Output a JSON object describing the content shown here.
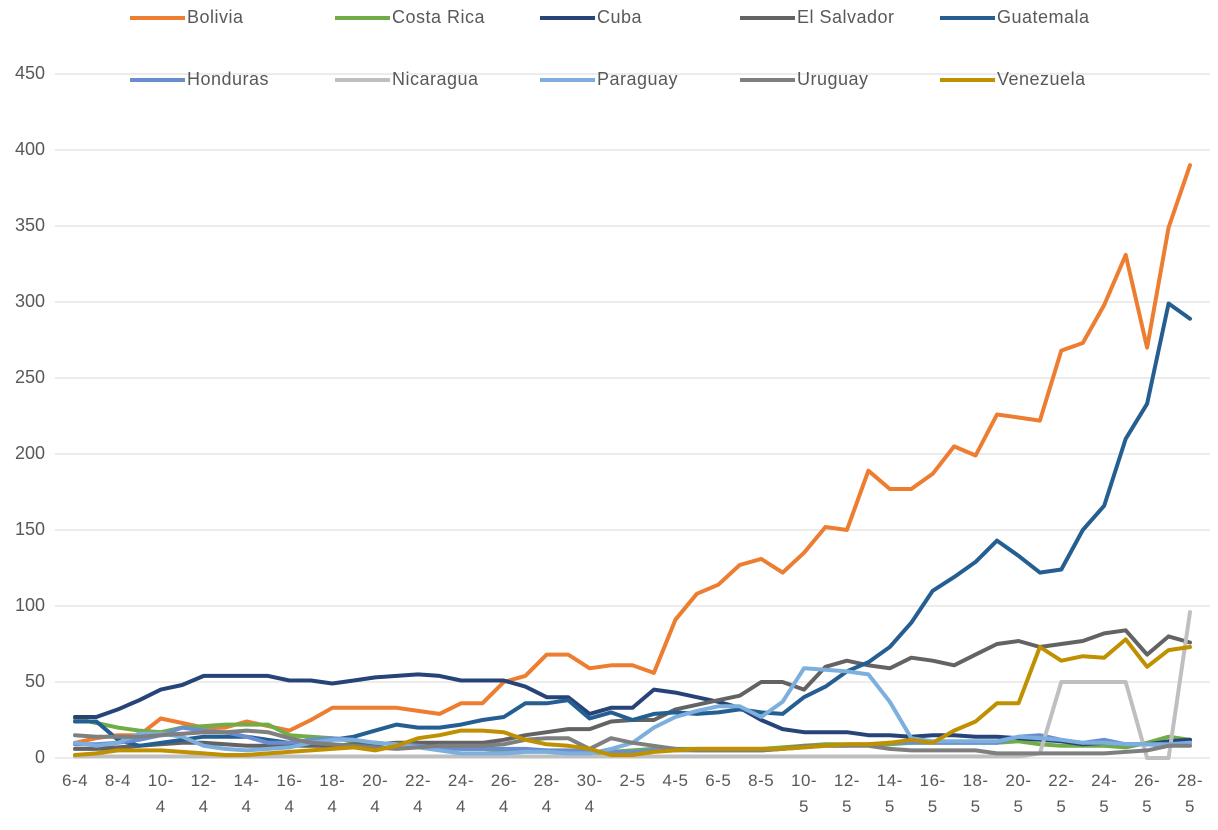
{
  "chart_data": {
    "type": "line",
    "categories": [
      "6-4",
      null,
      "8-4",
      null,
      "10-4",
      null,
      "12-4",
      null,
      "14-4",
      null,
      "16-4",
      null,
      "18-4",
      null,
      "20-4",
      null,
      "22-4",
      null,
      "24-4",
      null,
      "26-4",
      null,
      "28-4",
      null,
      "30-4",
      null,
      "2-5",
      null,
      "4-5",
      null,
      "6-5",
      null,
      "8-5",
      null,
      "10-5",
      null,
      "12-5",
      null,
      "14-5",
      null,
      "16-5",
      null,
      "18-5",
      null,
      "20-5",
      null,
      "22-5",
      null,
      "24-5",
      null,
      "26-5",
      null,
      "28-5"
    ],
    "ylim": [
      0,
      450
    ],
    "yticks": [
      0,
      50,
      100,
      150,
      200,
      250,
      300,
      350,
      400,
      450
    ],
    "grid": true,
    "legend": "top",
    "series": [
      {
        "name": "Bolivia",
        "color": "#ED7D31",
        "values": [
          10,
          13,
          15,
          15,
          26,
          23,
          20,
          20,
          24,
          21,
          18,
          25,
          33,
          33,
          33,
          33,
          31,
          29,
          36,
          36,
          50,
          54,
          68,
          68,
          59,
          61,
          61,
          56,
          91,
          108,
          114,
          127,
          131,
          122,
          135,
          152,
          150,
          189,
          177,
          177,
          187,
          205,
          199,
          226,
          224,
          222,
          268,
          273,
          298,
          331,
          270,
          349,
          390
        ]
      },
      {
        "name": "Costa Rica",
        "color": "#70AD47",
        "values": [
          26,
          23,
          20,
          18,
          17,
          20,
          21,
          22,
          22,
          22,
          15,
          14,
          13,
          11,
          10,
          9,
          8,
          7,
          6,
          6,
          5,
          5,
          5,
          4,
          3,
          4,
          5,
          6,
          6,
          6,
          6,
          6,
          6,
          7,
          8,
          9,
          9,
          9,
          9,
          10,
          10,
          10,
          10,
          10,
          11,
          9,
          8,
          8,
          8,
          7,
          10,
          14,
          12
        ]
      },
      {
        "name": "Cuba",
        "color": "#264478",
        "values": [
          27,
          27,
          32,
          38,
          45,
          48,
          54,
          54,
          54,
          54,
          51,
          51,
          49,
          51,
          53,
          54,
          55,
          54,
          51,
          51,
          51,
          47,
          40,
          40,
          29,
          33,
          33,
          45,
          43,
          40,
          37,
          33,
          25,
          19,
          17,
          17,
          17,
          15,
          15,
          14,
          15,
          15,
          14,
          14,
          13,
          12,
          11,
          9,
          10,
          9,
          9,
          11,
          12
        ]
      },
      {
        "name": "El Salvador",
        "color": "#636363",
        "values": [
          6,
          6,
          7,
          8,
          9,
          10,
          10,
          9,
          8,
          8,
          8,
          8,
          8,
          9,
          9,
          10,
          10,
          10,
          10,
          10,
          12,
          15,
          17,
          19,
          19,
          24,
          25,
          25,
          32,
          35,
          38,
          41,
          50,
          50,
          45,
          60,
          64,
          61,
          59,
          66,
          64,
          61,
          68,
          75,
          77,
          73,
          75,
          77,
          82,
          84,
          68,
          80,
          76
        ]
      },
      {
        "name": "Guatemala",
        "color": "#255E91",
        "values": [
          24,
          24,
          12,
          8,
          10,
          12,
          14,
          14,
          14,
          12,
          10,
          10,
          12,
          14,
          18,
          22,
          20,
          20,
          22,
          25,
          27,
          36,
          36,
          38,
          26,
          30,
          25,
          29,
          30,
          29,
          30,
          32,
          30,
          29,
          40,
          47,
          57,
          63,
          73,
          89,
          110,
          119,
          129,
          143,
          133,
          122,
          124,
          150,
          166,
          210,
          233,
          299,
          289
        ]
      },
      {
        "name": "Honduras",
        "color": "#698ED0",
        "values": [
          9,
          9,
          10,
          12,
          15,
          20,
          18,
          17,
          14,
          10,
          10,
          12,
          13,
          12,
          10,
          9,
          8,
          7,
          6,
          6,
          6,
          6,
          5,
          5,
          4,
          4,
          4,
          5,
          5,
          5,
          5,
          5,
          5,
          6,
          7,
          8,
          8,
          9,
          10,
          10,
          10,
          10,
          10,
          10,
          14,
          15,
          12,
          10,
          12,
          9,
          9,
          8,
          10
        ]
      },
      {
        "name": "Nicaragua",
        "color": "#BFBFBF",
        "values": [
          1,
          1,
          1,
          1,
          1,
          1,
          1,
          1,
          1,
          1,
          1,
          1,
          1,
          1,
          1,
          1,
          1,
          1,
          1,
          1,
          1,
          1,
          1,
          1,
          1,
          1,
          1,
          1,
          1,
          1,
          1,
          1,
          1,
          1,
          1,
          1,
          1,
          1,
          1,
          1,
          1,
          1,
          1,
          1,
          1,
          3,
          50,
          50,
          50,
          50,
          0,
          0,
          96
        ]
      },
      {
        "name": "Paraguay",
        "color": "#7CAFDD",
        "values": [
          10,
          8,
          10,
          16,
          16,
          14,
          8,
          6,
          5,
          6,
          7,
          10,
          12,
          12,
          10,
          9,
          7,
          5,
          3,
          3,
          3,
          4,
          4,
          3,
          3,
          6,
          10,
          20,
          27,
          31,
          34,
          34,
          27,
          37,
          59,
          58,
          57,
          55,
          37,
          13,
          11,
          11,
          11,
          11,
          14,
          13,
          12,
          10,
          10,
          9,
          9,
          9,
          10
        ]
      },
      {
        "name": "Uruguay",
        "color": "#7F7F7F",
        "values": [
          15,
          14,
          14,
          14,
          15,
          16,
          17,
          17,
          18,
          17,
          13,
          10,
          9,
          8,
          7,
          6,
          7,
          8,
          8,
          8,
          9,
          12,
          13,
          13,
          6,
          13,
          10,
          8,
          6,
          5,
          5,
          5,
          5,
          6,
          8,
          8,
          8,
          8,
          6,
          5,
          5,
          5,
          5,
          3,
          3,
          3,
          3,
          3,
          3,
          4,
          5,
          8,
          8
        ]
      },
      {
        "name": "Venezuela",
        "color": "#BF9000",
        "values": [
          2,
          3,
          5,
          5,
          5,
          4,
          3,
          2,
          2,
          3,
          4,
          5,
          6,
          7,
          5,
          8,
          13,
          15,
          18,
          18,
          17,
          12,
          9,
          8,
          6,
          2,
          2,
          4,
          5,
          6,
          6,
          6,
          6,
          6,
          7,
          8,
          9,
          9,
          10,
          12,
          10,
          18,
          24,
          36,
          36,
          73,
          64,
          67,
          66,
          78,
          60,
          71,
          73
        ]
      }
    ]
  }
}
